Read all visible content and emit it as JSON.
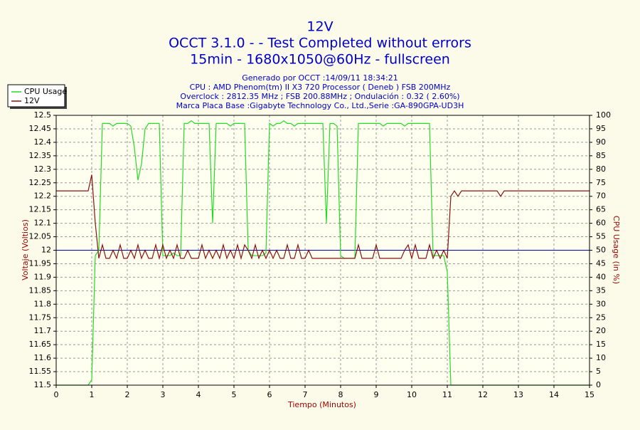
{
  "chart_data": {
    "type": "line",
    "title": "12V",
    "title_lines": [
      "OCCT 3.1.0 -  - Test Completed without errors",
      "15min - 1680x1050@60Hz - fullscreen"
    ],
    "subtitle_lines": [
      "Generado por OCCT :14/09/11 18:34:21",
      "CPU : AMD Phenom(tm) II X3 720 Processor ( Deneb ) FSB 200MHz",
      "Overclock : 2812.35 MHz ; FSB 200.88MHz ; Ondulación : 0.32 ( 2.60%)",
      "Marca Placa Base :Gigabyte Technology Co., Ltd.,Serie :GA-890GPA-UD3H"
    ],
    "xlabel": "Tiempo (Minutos)",
    "ylabel": "Voltaje (Voltios)",
    "y2label": "CPU Usage (in %)",
    "xlim": [
      0,
      15
    ],
    "xticks": [
      0,
      1,
      2,
      3,
      4,
      5,
      6,
      7,
      8,
      9,
      10,
      11,
      12,
      13,
      14,
      15
    ],
    "ylim": [
      11.5,
      12.5
    ],
    "yticks": [
      11.5,
      11.55,
      11.6,
      11.65,
      11.7,
      11.75,
      11.8,
      11.85,
      11.9,
      11.95,
      12,
      12.05,
      12.1,
      12.15,
      12.2,
      12.25,
      12.3,
      12.35,
      12.4,
      12.45,
      12.5
    ],
    "y2lim": [
      0,
      100
    ],
    "y2ticks": [
      0,
      5,
      10,
      15,
      20,
      25,
      30,
      35,
      40,
      45,
      50,
      55,
      60,
      65,
      70,
      75,
      80,
      85,
      90,
      95,
      100
    ],
    "grid": true,
    "legend": "top-left",
    "reference_line": {
      "value": 12,
      "color": "#0000b0"
    },
    "x": [
      0,
      0.1,
      0.2,
      0.3,
      0.4,
      0.5,
      0.6,
      0.7,
      0.8,
      0.9,
      1,
      1.1,
      1.2,
      1.3,
      1.4,
      1.5,
      1.6,
      1.7,
      1.8,
      1.9,
      2,
      2.1,
      2.2,
      2.3,
      2.4,
      2.5,
      2.6,
      2.7,
      2.8,
      2.9,
      3,
      3.1,
      3.2,
      3.3,
      3.4,
      3.5,
      3.6,
      3.7,
      3.8,
      3.9,
      4,
      4.1,
      4.2,
      4.3,
      4.4,
      4.5,
      4.6,
      4.7,
      4.8,
      4.9,
      5,
      5.1,
      5.2,
      5.3,
      5.4,
      5.5,
      5.6,
      5.7,
      5.8,
      5.9,
      6,
      6.1,
      6.2,
      6.3,
      6.4,
      6.5,
      6.6,
      6.7,
      6.8,
      6.9,
      7,
      7.1,
      7.2,
      7.3,
      7.4,
      7.5,
      7.6,
      7.7,
      7.8,
      7.9,
      8,
      8.1,
      8.2,
      8.3,
      8.4,
      8.5,
      8.6,
      8.7,
      8.8,
      8.9,
      9,
      9.1,
      9.2,
      9.3,
      9.4,
      9.5,
      9.6,
      9.7,
      9.8,
      9.9,
      10,
      10.1,
      10.2,
      10.3,
      10.4,
      10.5,
      10.6,
      10.7,
      10.8,
      10.9,
      11,
      11.1,
      11.2,
      11.3,
      11.4,
      11.5,
      11.6,
      11.7,
      11.8,
      11.9,
      12,
      12.1,
      12.2,
      12.3,
      12.4,
      12.5,
      12.6,
      12.7,
      12.8,
      12.9,
      13,
      13.1,
      13.2,
      13.3,
      13.4,
      13.5,
      13.6,
      13.7,
      13.8,
      13.9,
      14,
      14.1,
      14.2,
      14.3,
      14.4,
      14.5,
      14.6,
      14.7,
      14.8,
      14.9,
      15
    ],
    "series": [
      {
        "name": "CPU Usage",
        "color": "#22dd22",
        "axis": "y2",
        "values": [
          0,
          0,
          0,
          0,
          0,
          0,
          0,
          0,
          0,
          0,
          2,
          48,
          50,
          97,
          97,
          97,
          96,
          97,
          97,
          97,
          97,
          96,
          88,
          76,
          82,
          95,
          97,
          97,
          97,
          97,
          48,
          48,
          48,
          49,
          48,
          48,
          97,
          97,
          98,
          97,
          97,
          97,
          97,
          97,
          60,
          97,
          97,
          97,
          97,
          96,
          97,
          97,
          97,
          97,
          50,
          48,
          48,
          48,
          48,
          49,
          97,
          96,
          97,
          97,
          98,
          97,
          97,
          96,
          97,
          97,
          97,
          97,
          97,
          97,
          97,
          97,
          60,
          97,
          97,
          96,
          48,
          47,
          47,
          47,
          47,
          97,
          97,
          97,
          97,
          97,
          97,
          97,
          96,
          97,
          97,
          97,
          97,
          97,
          96,
          97,
          97,
          97,
          97,
          97,
          97,
          97,
          48,
          48,
          48,
          48,
          42,
          0,
          0,
          0,
          0,
          0,
          0,
          0,
          0,
          0,
          0,
          0,
          0,
          0,
          0,
          0,
          0,
          0,
          0,
          0,
          0,
          0,
          0,
          0,
          0,
          0,
          0,
          0,
          0,
          0,
          0,
          0,
          0,
          0,
          0,
          0,
          0,
          0,
          0,
          0,
          0
        ]
      },
      {
        "name": "12V",
        "color": "#8b1010",
        "values": [
          12.22,
          12.22,
          12.22,
          12.22,
          12.22,
          12.22,
          12.22,
          12.22,
          12.22,
          12.22,
          12.28,
          12.1,
          11.97,
          12.02,
          11.97,
          11.97,
          12,
          11.97,
          12.02,
          11.97,
          11.97,
          12,
          11.97,
          12.02,
          11.97,
          12,
          11.97,
          11.97,
          12.02,
          11.97,
          12.02,
          11.97,
          12,
          11.97,
          12.02,
          11.97,
          11.97,
          12,
          11.97,
          11.97,
          11.97,
          12.02,
          11.97,
          12,
          11.97,
          12,
          11.97,
          12.02,
          11.97,
          12,
          11.97,
          12.02,
          11.97,
          12.02,
          12,
          11.97,
          12.02,
          11.97,
          12,
          11.97,
          12,
          11.97,
          12,
          11.97,
          11.97,
          12.02,
          11.97,
          11.97,
          12.02,
          11.97,
          11.97,
          12,
          11.97,
          11.97,
          11.97,
          11.97,
          11.97,
          11.97,
          11.97,
          11.97,
          11.97,
          11.97,
          11.97,
          11.97,
          11.97,
          12.02,
          11.97,
          11.97,
          11.97,
          11.97,
          12.02,
          11.97,
          11.97,
          11.97,
          11.97,
          11.97,
          11.97,
          11.97,
          12,
          12.02,
          11.97,
          12.02,
          11.97,
          11.97,
          11.97,
          12.02,
          11.97,
          12,
          11.97,
          12,
          11.97,
          12.2,
          12.22,
          12.2,
          12.22,
          12.22,
          12.22,
          12.22,
          12.22,
          12.22,
          12.22,
          12.22,
          12.22,
          12.22,
          12.22,
          12.2,
          12.22,
          12.22,
          12.22,
          12.22,
          12.22,
          12.22,
          12.22,
          12.22,
          12.22,
          12.22,
          12.22,
          12.22,
          12.22,
          12.22,
          12.22,
          12.22,
          12.22,
          12.22,
          12.22,
          12.22,
          12.22,
          12.22,
          12.22,
          12.22,
          12.22
        ]
      }
    ]
  }
}
